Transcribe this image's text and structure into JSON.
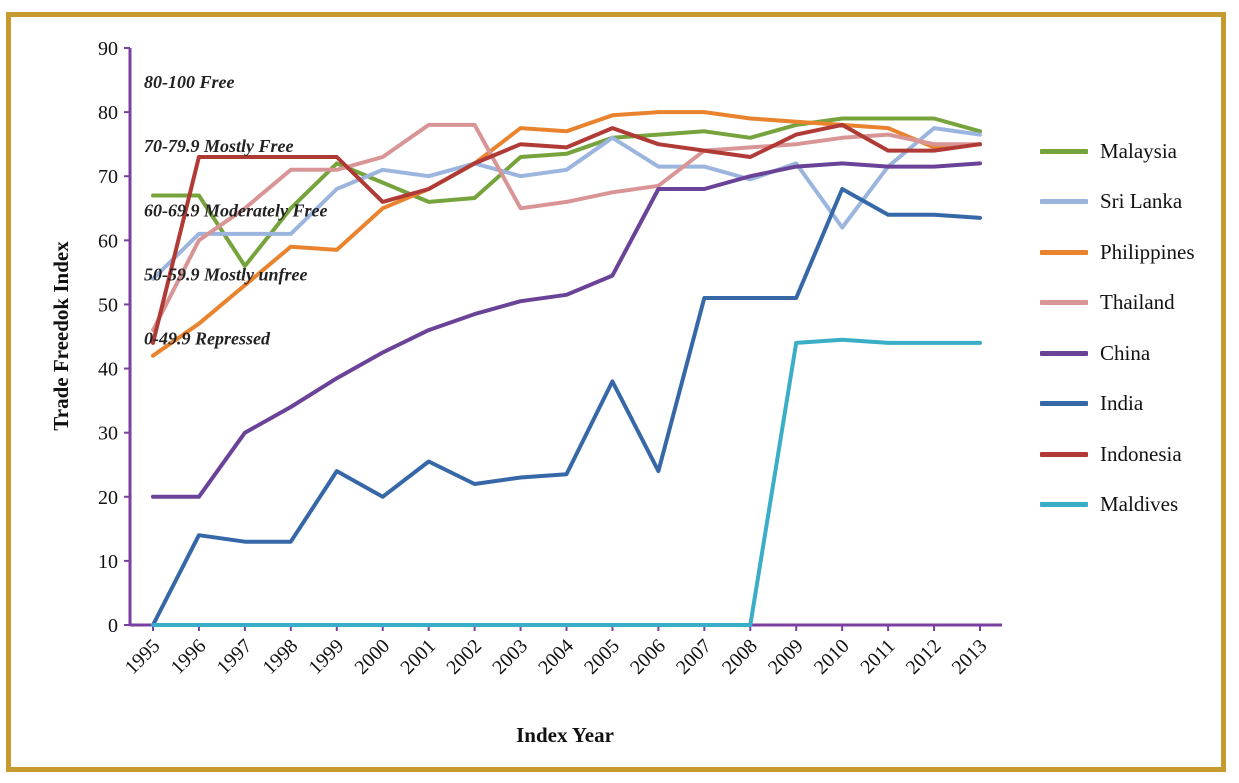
{
  "chart_data": {
    "type": "line",
    "xlabel": "Index Year",
    "ylabel": "Trade Freedok Index",
    "ylim": [
      0,
      90
    ],
    "yticks": [
      0,
      10,
      20,
      30,
      40,
      50,
      60,
      70,
      80,
      90
    ],
    "categories": [
      "1995",
      "1996",
      "1997",
      "1998",
      "1999",
      "2000",
      "2001",
      "2002",
      "2003",
      "2004",
      "2005",
      "2006",
      "2007",
      "2008",
      "2009",
      "2010",
      "2011",
      "2012",
      "2013"
    ],
    "legend_position": "right",
    "grid": false,
    "bands": [
      {
        "label": "80-100 Free",
        "value": 85
      },
      {
        "label": "70-79.9 Mostly Free",
        "value": 75
      },
      {
        "label": "60-69.9 Moderately Free",
        "value": 65
      },
      {
        "label": "50-59.9 Mostly unfree",
        "value": 55
      },
      {
        "label": "0-49.9 Repressed",
        "value": 45
      }
    ],
    "series": [
      {
        "name": "Malaysia",
        "color": "#77a33c",
        "values": [
          67,
          67,
          56,
          65,
          72,
          69,
          66,
          66.6,
          73,
          73.5,
          76,
          76.5,
          77,
          76,
          78,
          79,
          79,
          79,
          77
        ]
      },
      {
        "name": "Sri Lanka",
        "color": "#9bb5de",
        "values": [
          54,
          61,
          61,
          61,
          68,
          71,
          70,
          72,
          70,
          71,
          76,
          71.5,
          71.5,
          69.5,
          72,
          62,
          71.5,
          77.5,
          76.5
        ]
      },
      {
        "name": "Philippines",
        "color": "#e9832e",
        "values": [
          42,
          47,
          53,
          59,
          58.5,
          65,
          68,
          72,
          77.5,
          77,
          79.5,
          80,
          80,
          79,
          78.5,
          78,
          77.5,
          74.5,
          75
        ]
      },
      {
        "name": "Thailand",
        "color": "#d99595",
        "values": [
          46,
          60,
          65,
          71,
          71,
          73,
          78,
          78,
          65,
          66,
          67.5,
          68.5,
          74,
          74.5,
          75,
          76,
          76.5,
          75,
          75
        ]
      },
      {
        "name": "China",
        "color": "#6a4398",
        "values": [
          20,
          20,
          30,
          34,
          38.5,
          42.5,
          46,
          48.5,
          50.5,
          51.5,
          54.5,
          68,
          68,
          70,
          71.5,
          72,
          71.5,
          71.5,
          72
        ]
      },
      {
        "name": "India",
        "color": "#3668a8",
        "values": [
          0,
          14,
          13,
          13,
          24,
          20,
          25.5,
          22,
          23,
          23.5,
          38,
          24,
          51,
          51,
          51,
          68,
          64,
          64,
          63.5
        ]
      },
      {
        "name": "Indonesia",
        "color": "#b03a35",
        "values": [
          44,
          73,
          73,
          73,
          73,
          66,
          68,
          72,
          75,
          74.5,
          77.5,
          75,
          74,
          73,
          76.5,
          78,
          74,
          74,
          75
        ]
      },
      {
        "name": "Maldives",
        "color": "#3aaec6",
        "values": [
          0,
          0,
          0,
          0,
          0,
          0,
          0,
          0,
          0,
          0,
          0,
          0,
          0,
          0,
          44,
          44.5,
          44,
          44,
          44
        ]
      }
    ]
  }
}
